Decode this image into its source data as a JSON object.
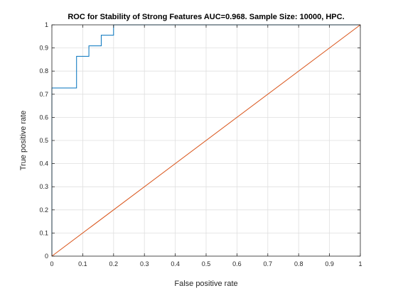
{
  "chart_data": {
    "type": "line",
    "title": "ROC for Stability of Strong Features AUC=0.968. Sample Size: 10000, HPC.",
    "xlabel": "False positive rate",
    "ylabel": "True positive rate",
    "xlim": [
      0,
      1
    ],
    "ylim": [
      0,
      1
    ],
    "xticks": [
      "0",
      "0.1",
      "0.2",
      "0.3",
      "0.4",
      "0.5",
      "0.6",
      "0.7",
      "0.8",
      "0.9",
      "1"
    ],
    "yticks": [
      "0",
      "0.1",
      "0.2",
      "0.3",
      "0.4",
      "0.5",
      "0.6",
      "0.7",
      "0.8",
      "0.9",
      "1"
    ],
    "grid": true,
    "series": [
      {
        "color": "#0072bd",
        "x": [
          0,
          0,
          0.08,
          0.08,
          0.12,
          0.12,
          0.16,
          0.16,
          0.2,
          0.2,
          1
        ],
        "y": [
          0,
          0.727,
          0.727,
          0.864,
          0.864,
          0.909,
          0.909,
          0.955,
          0.955,
          1,
          1
        ]
      },
      {
        "color": "#d95319",
        "x": [
          0,
          1
        ],
        "y": [
          0,
          1
        ]
      }
    ]
  }
}
